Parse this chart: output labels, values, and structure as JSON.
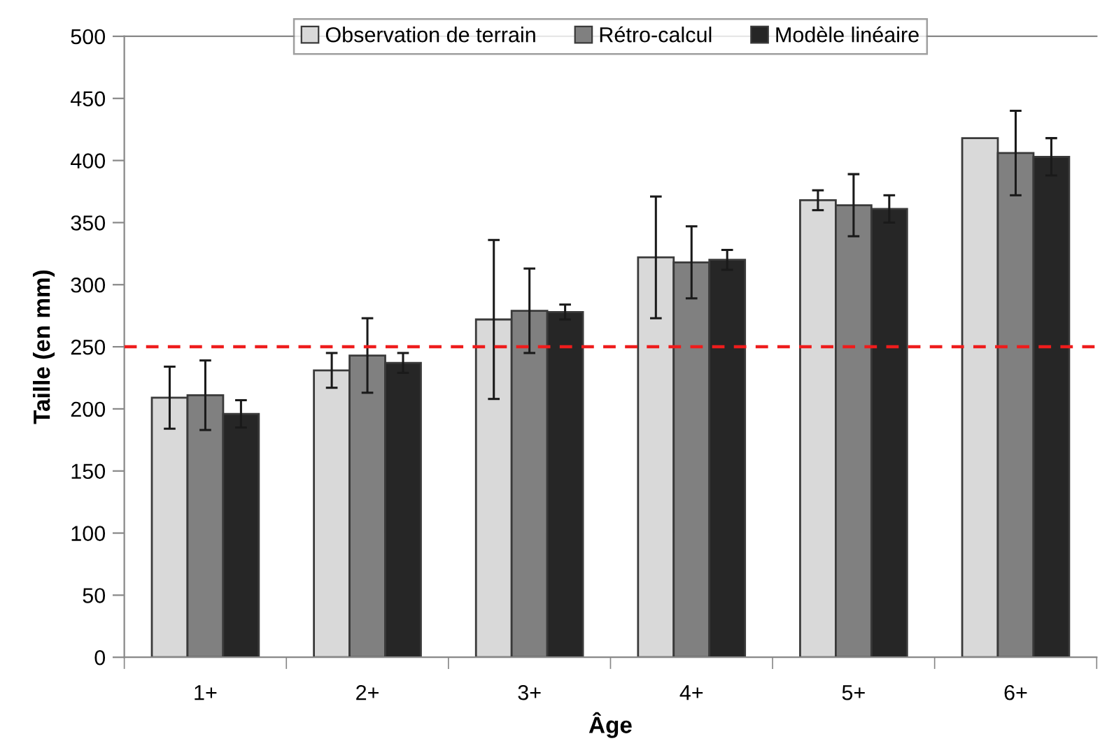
{
  "chart_data": {
    "type": "bar",
    "xlabel": "Âge",
    "ylabel": "Taille (en mm)",
    "categories": [
      "1+",
      "2+",
      "3+",
      "4+",
      "5+",
      "6+"
    ],
    "series": [
      {
        "name": "Observation de terrain",
        "color": "#d9d9d9",
        "values": [
          209,
          231,
          272,
          322,
          368,
          418
        ],
        "errors": [
          25,
          14,
          64,
          49,
          8,
          null
        ]
      },
      {
        "name": "Rétro-calcul",
        "color": "#808080",
        "values": [
          211,
          243,
          279,
          318,
          364,
          406
        ],
        "errors": [
          28,
          30,
          34,
          29,
          25,
          34
        ]
      },
      {
        "name": "Modèle linéaire",
        "color": "#262626",
        "values": [
          196,
          237,
          278,
          320,
          361,
          403
        ],
        "errors": [
          11,
          8,
          6,
          8,
          11,
          15
        ]
      }
    ],
    "ylim": [
      0,
      500
    ],
    "yticks": [
      0,
      50,
      100,
      150,
      200,
      250,
      300,
      350,
      400,
      450,
      500
    ],
    "ref_lines": [
      {
        "axis": "y",
        "value": 250,
        "color": "#ee1c1c",
        "line_style": "dashed"
      }
    ],
    "grid": false,
    "legend": "top"
  }
}
